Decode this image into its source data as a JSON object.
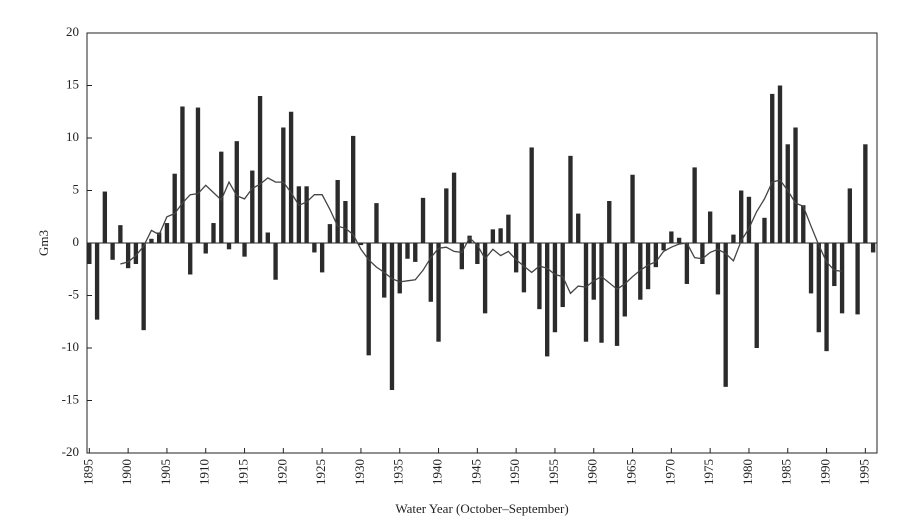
{
  "chart_data": {
    "type": "bar",
    "x_label": "Water Year (October–September)",
    "y_label": "Gm3",
    "x": [
      1895,
      1896,
      1897,
      1898,
      1899,
      1900,
      1901,
      1902,
      1903,
      1904,
      1905,
      1906,
      1907,
      1908,
      1909,
      1910,
      1911,
      1912,
      1913,
      1914,
      1915,
      1916,
      1917,
      1918,
      1919,
      1920,
      1921,
      1922,
      1923,
      1924,
      1925,
      1926,
      1927,
      1928,
      1929,
      1930,
      1931,
      1932,
      1933,
      1934,
      1935,
      1936,
      1937,
      1938,
      1939,
      1940,
      1941,
      1942,
      1943,
      1944,
      1945,
      1946,
      1947,
      1948,
      1949,
      1950,
      1951,
      1952,
      1953,
      1954,
      1955,
      1956,
      1957,
      1958,
      1959,
      1960,
      1961,
      1962,
      1963,
      1964,
      1965,
      1966,
      1967,
      1968,
      1969,
      1970,
      1971,
      1972,
      1973,
      1974,
      1975,
      1976,
      1977,
      1978,
      1979,
      1980,
      1981,
      1982,
      1983,
      1984,
      1985,
      1986,
      1987,
      1988,
      1989,
      1990,
      1991,
      1992,
      1993,
      1994,
      1995,
      1996
    ],
    "series": [
      {
        "kind": "bar",
        "color": "#2b2b2b",
        "values": [
          -2,
          -7.3,
          4.9,
          -1.6,
          1.7,
          -2.4,
          -2,
          -8.3,
          0.4,
          1,
          1.9,
          6.6,
          13,
          -3,
          12.9,
          -1,
          1.9,
          8.7,
          -0.6,
          9.7,
          -1.3,
          6.9,
          14,
          1,
          -3.5,
          11,
          12.5,
          5.4,
          5.4,
          -0.9,
          -2.8,
          1.8,
          6,
          4,
          10.2,
          -0.2,
          -10.7,
          3.8,
          -5.2,
          -14,
          -4.8,
          -1.5,
          -1.8,
          4.3,
          -5.6,
          -9.4,
          5.2,
          6.7,
          -2.5,
          0.7,
          -2,
          -6.7,
          1.3,
          1.4,
          2.7,
          -2.8,
          -4.7,
          9.1,
          -6.3,
          -10.8,
          -8.5,
          -6.1,
          8.3,
          2.8,
          -9.4,
          -5.4,
          -9.5,
          4,
          -9.8,
          -7,
          6.5,
          -5.4,
          -4.4,
          -2.3,
          -0.7,
          1.1,
          0.5,
          -3.9,
          7.2,
          -2,
          3,
          -4.9,
          -13.7,
          0.8,
          5,
          4.4,
          -10,
          2.4,
          14.2,
          15,
          9.4,
          11,
          3.6,
          -4.8,
          -8.5,
          -10.3,
          -4.1,
          -6.7,
          5.2,
          -6.8,
          9.4,
          -0.9
        ]
      },
      {
        "kind": "line",
        "color": "#444444",
        "values": [
          null,
          null,
          null,
          null,
          -2,
          -1.8,
          -1.2,
          -0.3,
          1.2,
          0.8,
          2.5,
          2.8,
          3.8,
          4.6,
          4.7,
          5.5,
          4.8,
          4.1,
          5.8,
          4.5,
          4.2,
          5.2,
          5.6,
          6.2,
          5.8,
          5.8,
          4.8,
          3.6,
          3.9,
          4.6,
          4.6,
          3.2,
          1.6,
          1.4,
          0.8,
          -0.6,
          -1.6,
          -2.3,
          -2.8,
          -3.4,
          -3.7,
          -3.6,
          -3.5,
          -2.6,
          -1.4,
          -0.5,
          -0.4,
          -0.8,
          -0.9,
          0.5,
          -0.2,
          -1.5,
          -0.6,
          -1.2,
          -0.8,
          -1.6,
          -2.2,
          -2.8,
          -2.2,
          -2.4,
          -3,
          -3.2,
          -4.8,
          -4.1,
          -4.2,
          -3.6,
          -3.2,
          -3.8,
          -4.4,
          -3.9,
          -3.2,
          -2.6,
          -2.1,
          -1.8,
          -0.8,
          -0.4,
          -0.1,
          0,
          -1.4,
          -1.5,
          -0.9,
          -0.6,
          -1,
          -1.7,
          0.2,
          1.4,
          3,
          4.2,
          5.8,
          6,
          5,
          3.8,
          3.5,
          1.6,
          -0.2,
          -1.8,
          -2.6,
          -2.7,
          null,
          null,
          null,
          null
        ]
      }
    ],
    "xlim": [
      1894.7,
      1996.5
    ],
    "xticks": [
      1895,
      1900,
      1905,
      1910,
      1915,
      1920,
      1925,
      1930,
      1935,
      1940,
      1945,
      1950,
      1955,
      1960,
      1965,
      1970,
      1975,
      1980,
      1985,
      1990,
      1995
    ],
    "ylim": [
      -20,
      20
    ],
    "yticks": [
      -20,
      -15,
      -10,
      -5,
      0,
      5,
      10,
      15,
      20
    ],
    "zero_line": true
  }
}
